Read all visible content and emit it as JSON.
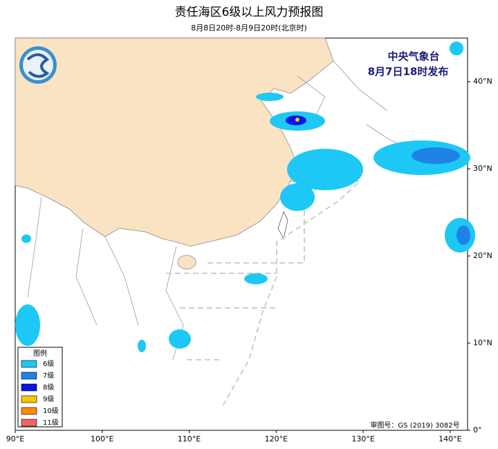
{
  "header": {
    "title": "责任海区6级以上风力预报图",
    "subtitle": "8月8日20时-8月9日20时(北京时)"
  },
  "issuer": {
    "name": "中央气象台",
    "time": "8月7日18时发布"
  },
  "legend": {
    "title": "图例",
    "items": [
      {
        "label": "6级",
        "color": "#1ec8f5"
      },
      {
        "label": "7级",
        "color": "#1e82e6"
      },
      {
        "label": "8级",
        "color": "#0a14e6"
      },
      {
        "label": "9级",
        "color": "#f0c800"
      },
      {
        "label": "10级",
        "color": "#ff8c00"
      },
      {
        "label": "11级",
        "color": "#f06464"
      }
    ]
  },
  "approval": "审图号：GS (2019) 3082号",
  "map": {
    "xlim": [
      90,
      142
    ],
    "ylim": [
      0,
      45
    ],
    "xticks": [
      {
        "value": 90,
        "label": "90°E"
      },
      {
        "value": 100,
        "label": "100°E"
      },
      {
        "value": 110,
        "label": "110°E"
      },
      {
        "value": 120,
        "label": "120°E"
      },
      {
        "value": 130,
        "label": "130°E"
      },
      {
        "value": 140,
        "label": "140°E"
      }
    ],
    "yticks": [
      {
        "value": 0,
        "label": "0°"
      },
      {
        "value": 10,
        "label": "10°N"
      },
      {
        "value": 20,
        "label": "20°N"
      },
      {
        "value": 30,
        "label": "30°N"
      },
      {
        "value": 40,
        "label": "40°N"
      }
    ]
  }
}
